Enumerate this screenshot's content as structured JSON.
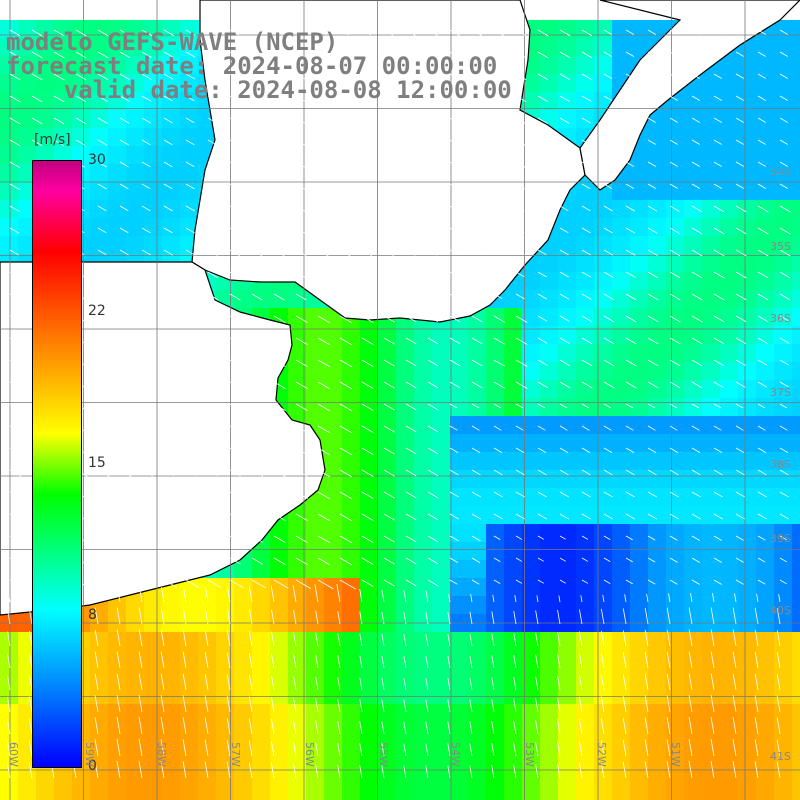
{
  "title": {
    "line1": "modelo GEFS-WAVE (NCEP)",
    "line2": "forecast date: 2024-08-07 00:00:00",
    "line3": "    valid date: 2024-08-08 12:00:00"
  },
  "colorbar": {
    "unit": "[m/s]",
    "ticks": [
      "30",
      "22",
      "15",
      "8",
      "0"
    ],
    "colors": [
      "#0000ff",
      "#00a0ff",
      "#00ffff",
      "#00ff00",
      "#ffff00",
      "#ff8000",
      "#ff0000",
      "#c00080"
    ]
  },
  "longitude_labels": [
    "60W",
    "59W",
    "58W",
    "57W",
    "56W",
    "55W",
    "54W",
    "53W",
    "52W",
    "51W"
  ],
  "latitude_labels": [
    "34S",
    "35S",
    "36S",
    "37S",
    "38S",
    "39S",
    "40S",
    "41S"
  ],
  "field": {
    "variable": "wind speed",
    "units": "m/s"
  }
}
